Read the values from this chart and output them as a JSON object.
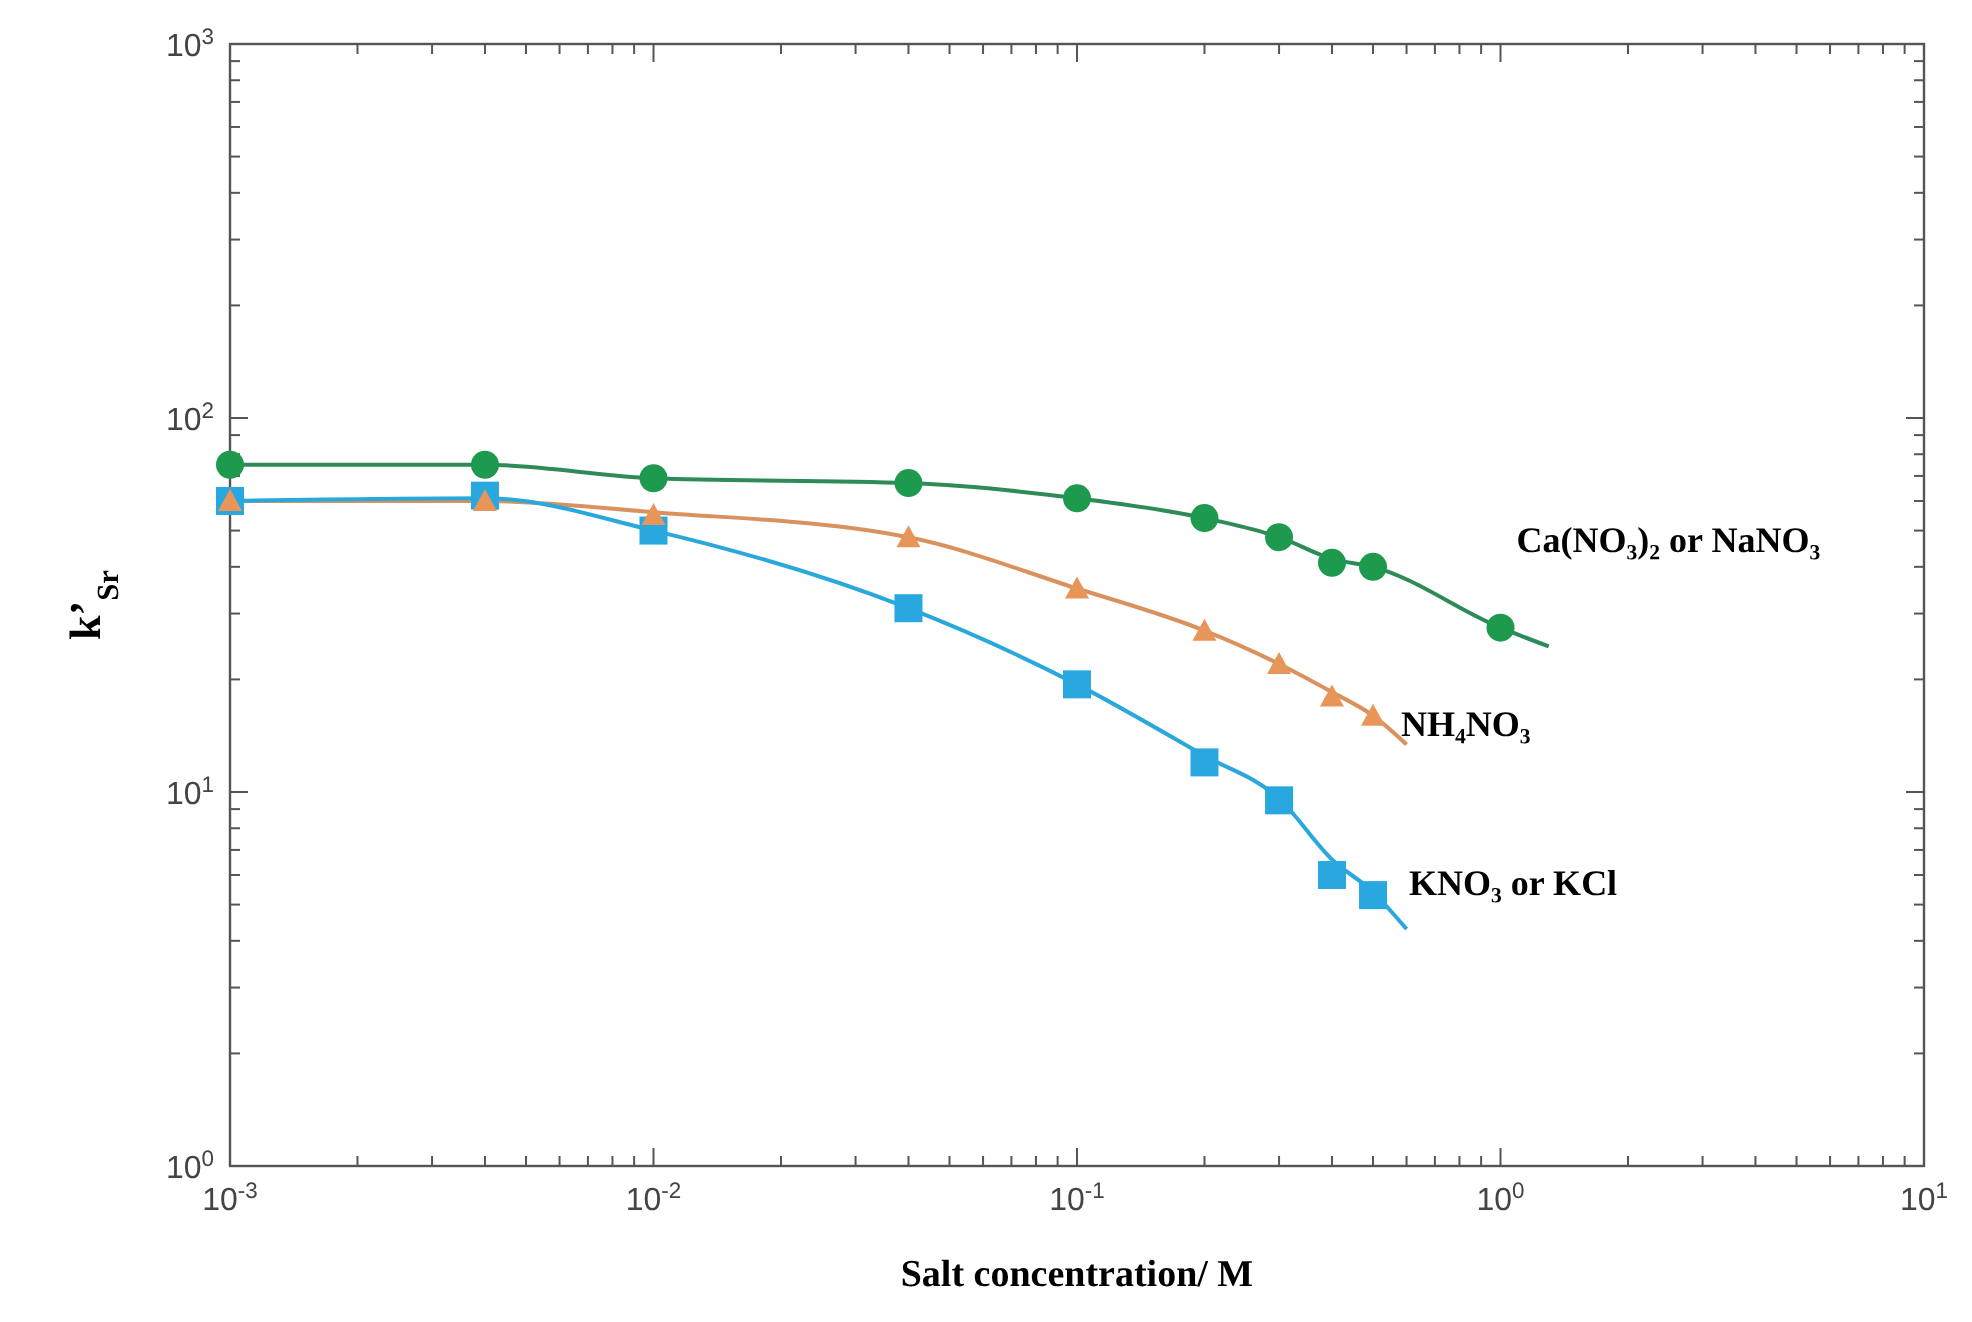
{
  "chart_data": {
    "type": "scatter",
    "xlabel": "Salt concentration/ M",
    "ylabel": "k’$_{Sr}$",
    "log": "xy",
    "grid": false,
    "marker": "circle",
    "xlim": [
      0.001,
      10
    ],
    "ylim": [
      1,
      1000
    ],
    "xticks": [
      {
        "value": 0.001,
        "label": "10$^{-3}$"
      },
      {
        "value": 0.002,
        "label": null
      },
      {
        "value": 0.003,
        "label": null
      },
      {
        "value": 0.004,
        "label": null
      },
      {
        "value": 0.005,
        "label": null
      },
      {
        "value": 0.006,
        "label": null
      },
      {
        "value": 0.007,
        "label": null
      },
      {
        "value": 0.008,
        "label": null
      },
      {
        "value": 0.009,
        "label": null
      },
      {
        "value": 0.01,
        "label": "10$^{-2}$"
      },
      {
        "value": 0.02,
        "label": null
      },
      {
        "value": 0.03,
        "label": null
      },
      {
        "value": 0.04,
        "label": null
      },
      {
        "value": 0.05,
        "label": null
      },
      {
        "value": 0.06,
        "label": null
      },
      {
        "value": 0.07,
        "label": null
      },
      {
        "value": 0.08,
        "label": null
      },
      {
        "value": 0.09,
        "label": null
      },
      {
        "value": 0.1,
        "label": "10$^{-1}$"
      },
      {
        "value": 0.2,
        "label": null
      },
      {
        "value": 0.3,
        "label": null
      },
      {
        "value": 0.4,
        "label": null
      },
      {
        "value": 0.5,
        "label": null
      },
      {
        "value": 0.6,
        "label": null
      },
      {
        "value": 0.7,
        "label": null
      },
      {
        "value": 0.8,
        "label": null
      },
      {
        "value": 0.9,
        "label": null
      },
      {
        "value": 1,
        "label": "10$^{0}$"
      },
      {
        "value": 2,
        "label": null
      },
      {
        "value": 3,
        "label": null
      },
      {
        "value": 4,
        "label": null
      },
      {
        "value": 5,
        "label": null
      },
      {
        "value": 6,
        "label": null
      },
      {
        "value": 7,
        "label": null
      },
      {
        "value": 8,
        "label": null
      },
      {
        "value": 9,
        "label": null
      },
      {
        "value": 10,
        "label": "10$^{1}$"
      }
    ],
    "yticks": [
      {
        "value": 1,
        "label": "10$^{0}$"
      },
      {
        "value": 2,
        "label": null
      },
      {
        "value": 3,
        "label": null
      },
      {
        "value": 4,
        "label": null
      },
      {
        "value": 5,
        "label": null
      },
      {
        "value": 6,
        "label": null
      },
      {
        "value": 7,
        "label": null
      },
      {
        "value": 8,
        "label": null
      },
      {
        "value": 9,
        "label": null
      },
      {
        "value": 10,
        "label": "10$^{1}$"
      },
      {
        "value": 20,
        "label": null
      },
      {
        "value": 30,
        "label": null
      },
      {
        "value": 40,
        "label": null
      },
      {
        "value": 50,
        "label": null
      },
      {
        "value": 60,
        "label": null
      },
      {
        "value": 70,
        "label": null
      },
      {
        "value": 80,
        "label": null
      },
      {
        "value": 90,
        "label": null
      },
      {
        "value": 100,
        "label": "10$^{2}$"
      },
      {
        "value": 200,
        "label": null
      },
      {
        "value": 300,
        "label": null
      },
      {
        "value": 400,
        "label": null
      },
      {
        "value": 500,
        "label": null
      },
      {
        "value": 600,
        "label": null
      },
      {
        "value": 700,
        "label": null
      },
      {
        "value": 800,
        "label": null
      },
      {
        "value": 900,
        "label": null
      },
      {
        "value": 1000,
        "label": "10$^{3}$"
      }
    ],
    "series": [
      {
        "type": "line",
        "marker": "none",
        "color": "#2e8b57",
        "x": [
          0.001,
          0.004,
          0.01,
          0.04,
          0.1,
          0.2,
          0.3,
          0.4,
          0.5,
          1,
          1.3
        ],
        "values": [
          75,
          75,
          69,
          67,
          61,
          54,
          48,
          42,
          40,
          27.5,
          24.5
        ]
      },
      {
        "type": "line",
        "marker": "none",
        "color": "#d9925e",
        "x": [
          0.001,
          0.004,
          0.01,
          0.04,
          0.1,
          0.2,
          0.3,
          0.4,
          0.5,
          0.6
        ],
        "values": [
          60,
          60,
          56,
          48,
          35,
          27,
          22,
          18.5,
          16,
          13.4
        ]
      },
      {
        "type": "line",
        "marker": "none",
        "color": "#2aa8dc",
        "x": [
          0.001,
          0.004,
          0.01,
          0.04,
          0.1,
          0.2,
          0.3,
          0.4,
          0.5,
          0.6
        ],
        "values": [
          60,
          61,
          50,
          31,
          19.4,
          12.5,
          9.6,
          6.6,
          5.4,
          4.3
        ]
      },
      {
        "name": "Ca(NO₃)₂ or  NaNO₃",
        "color": "#1e9a4e",
        "x": [
          0.001,
          0.004,
          0.01,
          0.04,
          0.1,
          0.2,
          0.3,
          0.4,
          0.5,
          1
        ],
        "values": [
          75,
          75,
          69,
          67,
          61,
          54,
          48,
          41,
          40,
          27.5
        ]
      },
      {
        "name": "KNO₃ or KCl",
        "marker": "square",
        "color": "#29a8e0",
        "x": [
          0.001,
          0.004,
          0.01,
          0.04,
          0.1,
          0.2,
          0.3,
          0.4,
          0.5
        ],
        "values": [
          60,
          62,
          50,
          31,
          19.4,
          12,
          9.5,
          6.0,
          5.3
        ]
      },
      {
        "name": "NH₄NO₃",
        "marker": "triangle",
        "color": "#e8955a",
        "x": [
          0.001,
          0.004,
          0.01,
          0.04,
          0.1,
          0.2,
          0.3,
          0.4,
          0.5
        ],
        "values": [
          60,
          60,
          55,
          48,
          35,
          27,
          22,
          18,
          16
        ]
      }
    ]
  }
}
